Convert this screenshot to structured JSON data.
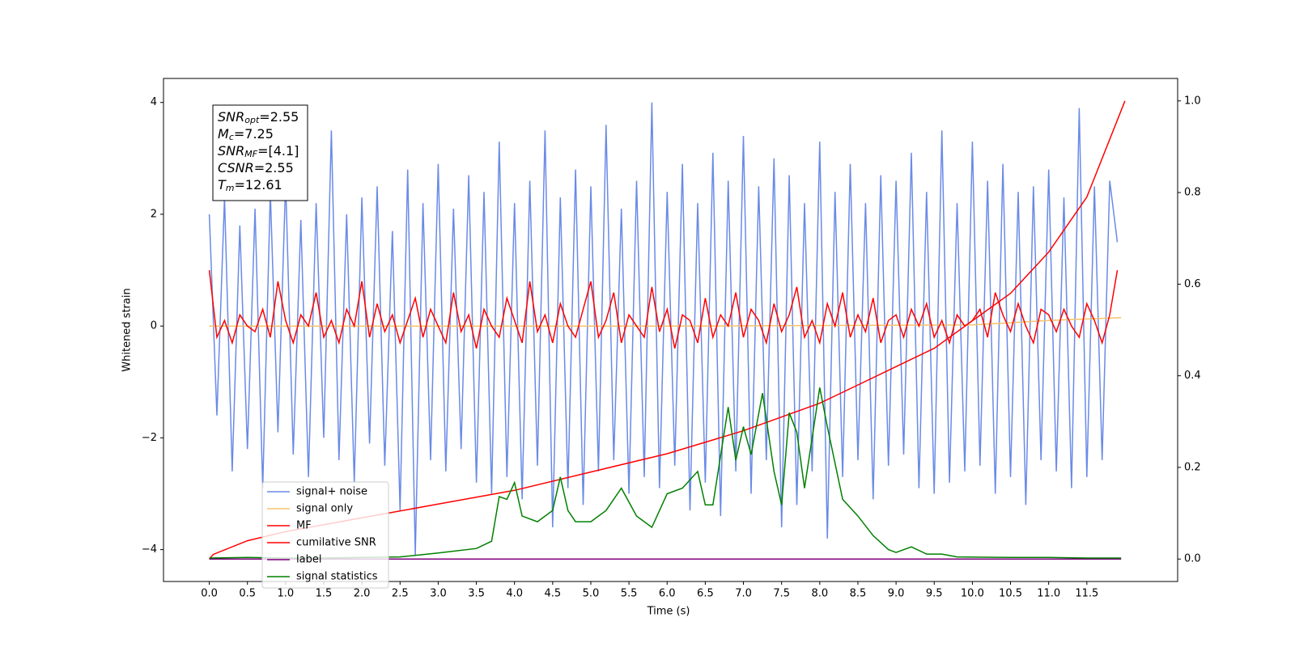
{
  "chart_data": {
    "type": "line",
    "xlabel": "Time (s)",
    "ylabel": "Whitened strain",
    "xlim": [
      -0.6,
      12.69
    ],
    "ylim": [
      -4.57,
      4.43
    ],
    "y2lim": [
      -0.049,
      1.049
    ],
    "xticks": [
      {
        "value": 0,
        "label": "0.0"
      },
      0.5,
      {
        "value": 1,
        "label": "1.0"
      },
      1.5,
      {
        "value": 2,
        "label": "2.0"
      },
      2.5,
      {
        "value": 3,
        "label": "3.0"
      },
      3.5,
      {
        "value": 4,
        "label": "4.0"
      },
      4.5,
      {
        "value": 5,
        "label": "5.0"
      },
      5.5,
      {
        "value": 6,
        "label": "6.0"
      },
      6.5,
      {
        "value": 7,
        "label": "7.0"
      },
      7.5,
      {
        "value": 8,
        "label": "8.0"
      },
      8.5,
      {
        "value": 9,
        "label": "9.0"
      },
      9.5,
      {
        "value": 10,
        "label": "10.0"
      },
      10.5,
      {
        "value": 11,
        "label": "11.0"
      },
      11.5
    ],
    "yticks": [
      {
        "value": -4,
        "label": "−4"
      },
      {
        "value": -2,
        "label": "−2"
      },
      0,
      2,
      4
    ],
    "y2ticks": [
      {
        "value": 0,
        "label": "0.0"
      },
      0.2,
      0.4,
      0.6,
      0.8,
      {
        "value": 1,
        "label": "1.0"
      }
    ],
    "legend": "lower left",
    "annotation": [
      {
        "main": "SNR",
        "sub": "opt",
        "rest": "=2.55"
      },
      {
        "main": "M",
        "sub": "c",
        "rest": "=7.25"
      },
      {
        "main": "SNR",
        "sub": "MF",
        "rest": "=[4.1]"
      },
      {
        "main": "CSNR",
        "sub": null,
        "rest": "=2.55"
      },
      {
        "main": "T",
        "sub": "m",
        "rest": "=12.61"
      }
    ],
    "x": [
      0,
      0.1,
      0.2,
      0.3,
      0.4,
      0.5,
      0.6,
      0.7,
      0.8,
      0.9,
      1,
      1.1,
      1.2,
      1.3,
      1.4,
      1.5,
      1.6,
      1.7,
      1.8,
      1.9,
      2,
      2.1,
      2.2,
      2.3,
      2.4,
      2.5,
      2.6,
      2.7,
      2.8,
      2.9,
      3,
      3.1,
      3.2,
      3.3,
      3.4,
      3.5,
      3.6,
      3.7,
      3.8,
      3.9,
      4,
      4.1,
      4.2,
      4.3,
      4.4,
      4.5,
      4.6,
      4.7,
      4.8,
      4.9,
      5,
      5.1,
      5.2,
      5.3,
      5.4,
      5.5,
      5.6,
      5.7,
      5.8,
      5.9,
      6,
      6.1,
      6.2,
      6.3,
      6.4,
      6.5,
      6.6,
      6.7,
      6.8,
      6.9,
      7,
      7.1,
      7.2,
      7.3,
      7.4,
      7.5,
      7.6,
      7.7,
      7.8,
      7.9,
      8,
      8.1,
      8.2,
      8.3,
      8.4,
      8.5,
      8.6,
      8.7,
      8.8,
      8.9,
      9,
      9.1,
      9.2,
      9.3,
      9.4,
      9.5,
      9.6,
      9.7,
      9.8,
      9.9,
      10,
      10.1,
      10.2,
      10.3,
      10.4,
      10.5,
      10.6,
      10.7,
      10.8,
      10.9,
      11,
      11.1,
      11.2,
      11.3,
      11.4,
      11.5,
      11.6,
      11.7,
      11.8,
      11.9
    ],
    "series": [
      {
        "name": "signal+ noise",
        "color": "#6a8ae6",
        "values": [
          2.0,
          -1.6,
          2.3,
          -2.6,
          1.8,
          -2.2,
          2.1,
          -2.9,
          2.4,
          -1.9,
          2.6,
          -2.3,
          1.9,
          -2.7,
          2.2,
          -2.0,
          3.5,
          -2.4,
          2.0,
          -2.8,
          2.3,
          -2.1,
          2.5,
          -2.5,
          1.7,
          -3.3,
          2.8,
          -4.1,
          2.2,
          -2.4,
          2.9,
          -2.6,
          2.1,
          -2.2,
          2.7,
          -2.8,
          2.4,
          -3.0,
          3.3,
          -2.7,
          2.2,
          -3.1,
          2.6,
          -2.5,
          3.5,
          -3.6,
          2.3,
          -2.9,
          2.8,
          -3.2,
          2.5,
          -2.6,
          3.6,
          -2.4,
          2.1,
          -3.0,
          2.6,
          -2.7,
          4.0,
          -2.9,
          2.4,
          -2.5,
          2.9,
          -3.3,
          2.2,
          -2.8,
          3.1,
          -3.4,
          2.6,
          -2.6,
          3.4,
          -3.0,
          2.5,
          -2.4,
          3.0,
          -3.6,
          2.7,
          -3.2,
          2.2,
          -2.6,
          3.3,
          -3.8,
          2.4,
          -2.7,
          2.9,
          -2.4,
          2.2,
          -3.1,
          2.7,
          -2.5,
          2.6,
          -2.3,
          3.1,
          -2.9,
          2.4,
          -3.0,
          3.5,
          -2.8,
          2.2,
          -2.6,
          3.3,
          -2.5,
          2.6,
          -3.0,
          2.9,
          -2.7,
          2.4,
          -3.2,
          2.5,
          -2.4,
          2.8,
          -2.6,
          2.3,
          -2.9,
          3.9,
          -2.7,
          2.5,
          -2.4,
          2.6,
          1.5
        ]
      },
      {
        "name": "signal only",
        "color": "#f5c36b",
        "x": [
          0,
          6,
          10,
          11,
          11.95
        ],
        "values": [
          0,
          0,
          0.02,
          0.1,
          0.15
        ]
      },
      {
        "name": "MF",
        "color": "#ff0000",
        "values": [
          1.0,
          -0.2,
          0.1,
          -0.3,
          0.2,
          0.0,
          -0.1,
          0.3,
          -0.2,
          0.8,
          0.1,
          -0.3,
          0.2,
          0.0,
          0.6,
          -0.2,
          0.1,
          -0.3,
          0.3,
          0.0,
          0.8,
          -0.2,
          0.4,
          -0.1,
          0.2,
          -0.3,
          0.1,
          0.5,
          -0.2,
          0.3,
          0.0,
          -0.3,
          0.6,
          -0.1,
          0.2,
          -0.4,
          0.3,
          0.0,
          -0.2,
          0.5,
          0.1,
          -0.3,
          0.8,
          -0.1,
          0.2,
          -0.3,
          0.4,
          0.0,
          -0.2,
          0.3,
          0.8,
          -0.2,
          0.1,
          0.6,
          -0.3,
          0.2,
          0.0,
          -0.2,
          0.7,
          -0.1,
          0.3,
          -0.4,
          0.2,
          0.1,
          -0.3,
          0.5,
          -0.2,
          0.2,
          0.0,
          0.6,
          -0.2,
          0.3,
          0.1,
          -0.3,
          0.4,
          -0.1,
          0.2,
          0.7,
          -0.2,
          0.1,
          -0.3,
          0.4,
          0.0,
          0.6,
          -0.2,
          0.2,
          -0.1,
          0.5,
          -0.3,
          0.1,
          0.2,
          -0.2,
          0.3,
          0.0,
          0.4,
          -0.2,
          0.1,
          -0.3,
          0.2,
          0.0,
          0.1,
          0.3,
          -0.2,
          0.6,
          0.2,
          -0.1,
          0.4,
          0.0,
          -0.3,
          0.3,
          0.2,
          -0.1,
          0.3,
          0.0,
          -0.2,
          0.4,
          0.1,
          -0.3,
          0.2,
          1.0
        ]
      },
      {
        "name": "cumilative SNR",
        "color": "#ff0000",
        "axis": "y2",
        "x": [
          0,
          0.05,
          0.5,
          1,
          2,
          3,
          4,
          5,
          6,
          7,
          7.5,
          8,
          8.5,
          9,
          9.5,
          10,
          10.5,
          11,
          11.5,
          12
        ],
        "values": [
          0.0,
          0.01,
          0.04,
          0.06,
          0.09,
          0.12,
          0.15,
          0.19,
          0.23,
          0.28,
          0.31,
          0.34,
          0.38,
          0.42,
          0.46,
          0.52,
          0.58,
          0.67,
          0.79,
          1.0
        ]
      },
      {
        "name": "label",
        "color": "#800080",
        "axis": "y2",
        "x": [
          0,
          11.95
        ],
        "values": [
          0,
          0
        ]
      },
      {
        "name": "signal statistics",
        "color": "#008000",
        "x": [
          0,
          0.5,
          1,
          1.5,
          2,
          2.5,
          3,
          3.5,
          3.7,
          3.8,
          3.9,
          4.0,
          4.1,
          4.3,
          4.5,
          4.6,
          4.7,
          4.8,
          5.0,
          5.2,
          5.4,
          5.6,
          5.8,
          6.0,
          6.2,
          6.4,
          6.5,
          6.6,
          6.8,
          6.9,
          7.0,
          7.1,
          7.25,
          7.4,
          7.5,
          7.6,
          7.7,
          7.8,
          8.0,
          8.1,
          8.3,
          8.5,
          8.7,
          8.9,
          9.0,
          9.2,
          9.4,
          9.6,
          9.8,
          10.5,
          11.0,
          11.5,
          11.95
        ],
        "values": [
          -4.15,
          -4.14,
          -4.15,
          -4.15,
          -4.14,
          -4.13,
          -4.06,
          -3.98,
          -3.85,
          -3.05,
          -3.1,
          -2.8,
          -3.4,
          -3.5,
          -3.3,
          -2.7,
          -3.3,
          -3.5,
          -3.5,
          -3.3,
          -2.9,
          -3.4,
          -3.6,
          -3.0,
          -2.9,
          -2.6,
          -3.2,
          -3.2,
          -1.45,
          -2.4,
          -1.8,
          -2.3,
          -1.2,
          -2.6,
          -3.2,
          -1.55,
          -1.9,
          -2.9,
          -1.1,
          -1.8,
          -3.1,
          -3.4,
          -3.75,
          -4.0,
          -4.05,
          -3.95,
          -4.08,
          -4.08,
          -4.13,
          -4.14,
          -4.14,
          -4.15,
          -4.15
        ]
      }
    ]
  }
}
